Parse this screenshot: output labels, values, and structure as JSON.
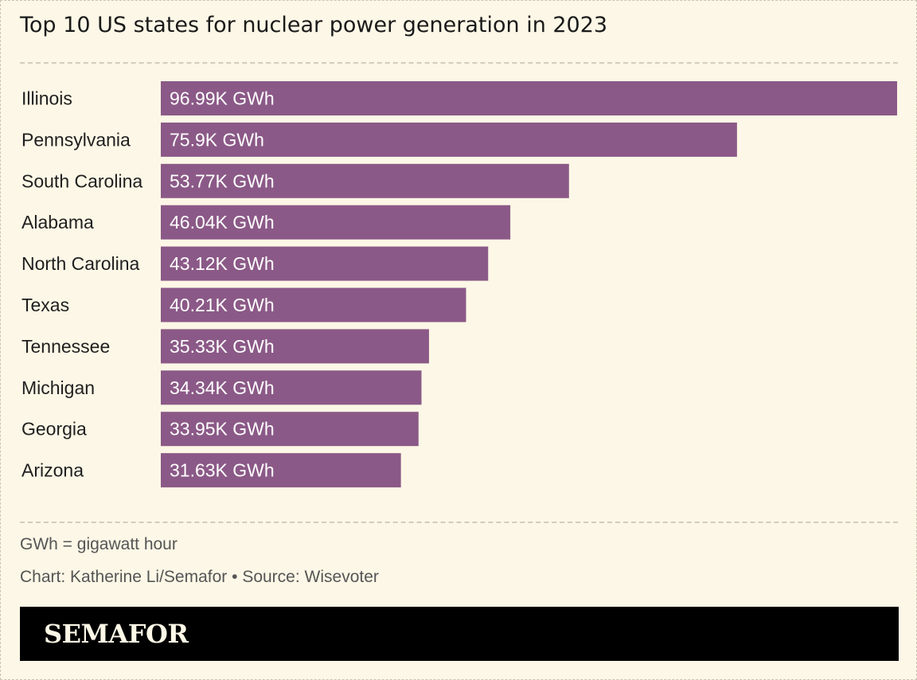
{
  "title": "Top 10 US states for nuclear power generation in 2023",
  "chart_data": {
    "type": "bar",
    "orientation": "horizontal",
    "title": "Top 10 US states for nuclear power generation in 2023",
    "unit": "K GWh",
    "categories": [
      "Illinois",
      "Pennsylvania",
      "South Carolina",
      "Alabama",
      "North Carolina",
      "Texas",
      "Tennessee",
      "Michigan",
      "Georgia",
      "Arizona"
    ],
    "values": [
      96.99,
      75.9,
      53.77,
      46.04,
      43.12,
      40.21,
      35.33,
      34.34,
      33.95,
      31.63
    ],
    "value_labels": [
      "96.99K GWh",
      "75.9K GWh",
      "53.77K GWh",
      "46.04K GWh",
      "43.12K GWh",
      "40.21K GWh",
      "35.33K GWh",
      "34.34K GWh",
      "33.95K GWh",
      "31.63K GWh"
    ],
    "xlim": [
      0,
      96.99
    ],
    "bar_color": "#8b5987",
    "grid": false
  },
  "footer": {
    "note": "GWh = gigawatt hour",
    "credit": "Chart: Katherine Li/Semafor • Source: Wisevoter",
    "brand": "SEMAFOR"
  },
  "colors": {
    "background": "#fcf7e6",
    "bar": "#8b5987",
    "brand_bar": "#000000"
  }
}
